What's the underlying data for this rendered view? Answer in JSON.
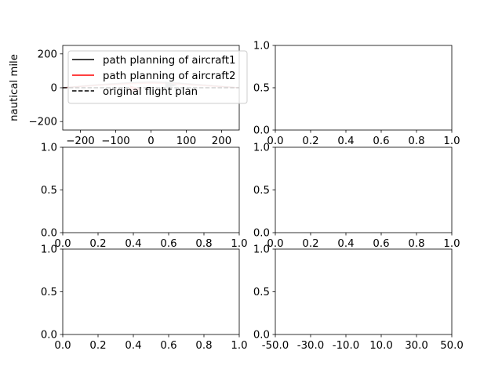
{
  "chart_data": [
    {
      "type": "line",
      "title": "",
      "xlabel": "",
      "ylabel": "nautical mile",
      "xlim": [
        -250,
        250
      ],
      "ylim": [
        -250,
        250
      ],
      "xticks": [
        -200,
        -100,
        0,
        100,
        200
      ],
      "xtick_labels": [
        "−200",
        "−100",
        "0",
        "100",
        "200"
      ],
      "yticks": [
        -200,
        0,
        200
      ],
      "ytick_labels": [
        "−200",
        "0",
        "200"
      ],
      "legend_placement": "upper-left",
      "series": [
        {
          "name": "path planning of aircraft1",
          "color": "#000000",
          "linestyle": "solid",
          "x": [
            -250,
            -150,
            -60,
            0,
            60,
            150,
            250
          ],
          "y": [
            0,
            18,
            30,
            34,
            30,
            16,
            0
          ]
        },
        {
          "name": "path planning of aircraft2",
          "color": "#ff0000",
          "linestyle": "solid",
          "x": [
            -250,
            -150,
            -60,
            0,
            60,
            150,
            250
          ],
          "y": [
            0,
            14,
            24,
            28,
            24,
            12,
            0
          ]
        },
        {
          "name": "original flight plan",
          "color": "#000000",
          "linestyle": "dashed",
          "x": [
            -250,
            250
          ],
          "y": [
            0,
            0
          ]
        }
      ],
      "markers": [
        {
          "x": 55,
          "y": 16,
          "color": "#b0b0b0"
        },
        {
          "x": -45,
          "y": -8,
          "color": "#ffb0b0"
        }
      ]
    },
    {
      "type": "line",
      "xlim": [
        0,
        1
      ],
      "ylim": [
        0,
        1
      ],
      "xticks": [
        0,
        0.2,
        0.4,
        0.6,
        0.8,
        1.0
      ],
      "xtick_labels": [
        "0.0",
        "0.2",
        "0.4",
        "0.6",
        "0.8",
        "1.0"
      ],
      "yticks": [
        0,
        0.5,
        1.0
      ],
      "ytick_labels": [
        "0.0",
        "0.5",
        "1.0"
      ],
      "series": []
    },
    {
      "type": "line",
      "xlim": [
        0,
        1
      ],
      "ylim": [
        0,
        1
      ],
      "xticks": [
        0,
        0.2,
        0.4,
        0.6,
        0.8,
        1.0
      ],
      "xtick_labels": [
        "0.0",
        "0.2",
        "0.4",
        "0.6",
        "0.8",
        "1.0"
      ],
      "yticks": [
        0,
        0.5,
        1.0
      ],
      "ytick_labels": [
        "0.0",
        "0.5",
        "1.0"
      ],
      "series": []
    },
    {
      "type": "line",
      "xlim": [
        0,
        1
      ],
      "ylim": [
        0,
        1
      ],
      "xticks": [
        0,
        0.2,
        0.4,
        0.6,
        0.8,
        1.0
      ],
      "xtick_labels": [
        "0.0",
        "0.2",
        "0.4",
        "0.6",
        "0.8",
        "1.0"
      ],
      "yticks": [
        0,
        0.5,
        1.0
      ],
      "ytick_labels": [
        "0.0",
        "0.5",
        "1.0"
      ],
      "series": []
    },
    {
      "type": "line",
      "xlim": [
        0,
        1
      ],
      "ylim": [
        0,
        1
      ],
      "xticks": [
        0,
        0.2,
        0.4,
        0.6,
        0.8,
        1.0
      ],
      "xtick_labels": [
        "0.0",
        "0.2",
        "0.4",
        "0.6",
        "0.8",
        "1.0"
      ],
      "yticks": [
        0,
        0.5,
        1.0
      ],
      "ytick_labels": [
        "0.0",
        "0.5",
        "1.0"
      ],
      "series": []
    },
    {
      "type": "line",
      "xlim": [
        -50,
        50
      ],
      "ylim": [
        0,
        1
      ],
      "xticks": [
        -50,
        -30,
        -10,
        10,
        30,
        50
      ],
      "xtick_labels": [
        "-50.0",
        "-30.0",
        "-10.0",
        "10.0",
        "30.0",
        "50.0"
      ],
      "yticks": [
        0,
        0.5,
        1.0
      ],
      "ytick_labels": [
        "0.0",
        "0.5",
        "1.0"
      ],
      "series": []
    }
  ]
}
